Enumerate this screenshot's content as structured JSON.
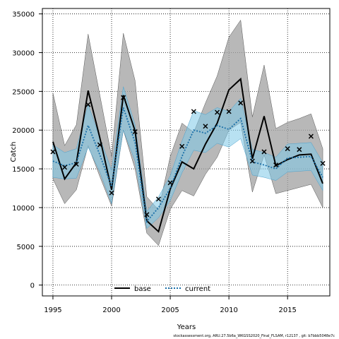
{
  "chart_data": {
    "type": "line",
    "title": "",
    "xlabel": "Years",
    "ylabel": "Catch",
    "xlim": [
      1994.1,
      2018.6
    ],
    "ylim": [
      -1400,
      35700
    ],
    "x_ticks": [
      1995,
      2000,
      2005,
      2010,
      2015
    ],
    "y_ticks": [
      0,
      5000,
      10000,
      15000,
      20000,
      25000,
      30000,
      35000
    ],
    "grid": true,
    "legend_position": "bottom-center",
    "footnote": "stockassessment.org, ARU.27.5b6a_WKGSS2020_Final_FLSAM, r12137 , git: b7bbb5048e7c",
    "x": [
      1995,
      1996,
      1997,
      1998,
      1999,
      2000,
      2001,
      2002,
      2003,
      2004,
      2005,
      2006,
      2007,
      2008,
      2009,
      2010,
      2011,
      2012,
      2013,
      2014,
      2015,
      2016,
      2017,
      2018
    ],
    "series": [
      {
        "name": "base",
        "color": "#000000",
        "band_color": "#a0a0a0",
        "values": [
          18500,
          13700,
          15800,
          25100,
          19000,
          12300,
          24500,
          19900,
          8300,
          6900,
          12400,
          15900,
          15000,
          18200,
          20900,
          25200,
          26600,
          16300,
          21800,
          15400,
          16200,
          16800,
          16900,
          13100
        ],
        "lower": [
          13700,
          10500,
          12300,
          18000,
          14000,
          10200,
          20000,
          15000,
          6700,
          5100,
          9800,
          12200,
          11500,
          14300,
          16500,
          20000,
          21000,
          12000,
          16800,
          11800,
          12200,
          12600,
          13000,
          10000
        ],
        "upper": [
          24800,
          18000,
          20700,
          32400,
          24500,
          16600,
          32500,
          26400,
          11400,
          9700,
          16600,
          20900,
          19700,
          23500,
          27000,
          32000,
          34200,
          21700,
          28400,
          20200,
          21000,
          21500,
          22100,
          17600
        ]
      },
      {
        "name": "current",
        "color": "#1a6fa8",
        "band_color": "#7ec8e8",
        "values": [
          16000,
          15400,
          15800,
          20600,
          16800,
          12700,
          22900,
          18400,
          8200,
          10000,
          12500,
          16600,
          20000,
          19600,
          20600,
          20100,
          21500,
          15900,
          15500,
          15000,
          16400,
          16500,
          16600,
          13900
        ],
        "lower": [
          13900,
          13700,
          13800,
          17800,
          14600,
          10500,
          20000,
          16000,
          7300,
          8700,
          10900,
          14500,
          17400,
          17100,
          18300,
          17800,
          18900,
          14200,
          13900,
          13500,
          14600,
          14700,
          14800,
          12200
        ],
        "upper": [
          18100,
          17100,
          17600,
          23300,
          19000,
          14800,
          25600,
          20700,
          9500,
          11400,
          14100,
          18600,
          22500,
          22000,
          22900,
          22400,
          24100,
          17500,
          17100,
          16500,
          18200,
          18300,
          18400,
          15800
        ]
      }
    ],
    "observed": {
      "marker": "x",
      "values": [
        17200,
        15200,
        15600,
        23300,
        18100,
        11900,
        24200,
        19800,
        9100,
        11100,
        13200,
        17900,
        22400,
        20500,
        22300,
        22400,
        23500,
        16000,
        17200,
        15500,
        17600,
        17500,
        19200,
        15700
      ]
    }
  }
}
